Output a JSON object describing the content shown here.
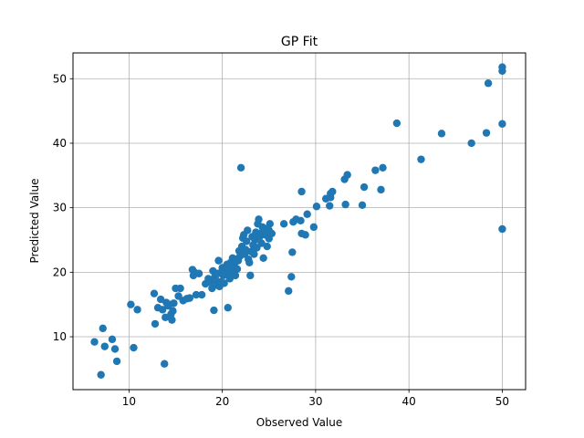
{
  "chart_data": {
    "type": "scatter",
    "title": "GP Fit",
    "xlabel": "Observed Value",
    "ylabel": "Predicted Value",
    "xlim": [
      4,
      52.5
    ],
    "ylim": [
      1.8,
      54
    ],
    "xticks": [
      10,
      20,
      30,
      40,
      50
    ],
    "yticks": [
      10,
      20,
      30,
      40,
      50
    ],
    "grid": true,
    "legend": "none",
    "color": "#1f77b4",
    "points": [
      [
        6.3,
        9.2
      ],
      [
        7.0,
        4.1
      ],
      [
        7.2,
        11.3
      ],
      [
        7.4,
        8.5
      ],
      [
        8.2,
        9.6
      ],
      [
        8.5,
        8.1
      ],
      [
        8.7,
        6.2
      ],
      [
        10.2,
        15.0
      ],
      [
        10.5,
        8.3
      ],
      [
        10.9,
        14.2
      ],
      [
        12.7,
        16.7
      ],
      [
        12.8,
        12.0
      ],
      [
        13.1,
        14.5
      ],
      [
        13.4,
        15.8
      ],
      [
        13.6,
        14.2
      ],
      [
        13.8,
        5.8
      ],
      [
        13.9,
        13.0
      ],
      [
        14.0,
        15.3
      ],
      [
        14.2,
        14.8
      ],
      [
        14.3,
        15.0
      ],
      [
        14.5,
        13.5
      ],
      [
        14.6,
        12.6
      ],
      [
        14.7,
        14.0
      ],
      [
        14.8,
        15.2
      ],
      [
        15.0,
        17.5
      ],
      [
        15.3,
        16.3
      ],
      [
        15.5,
        17.5
      ],
      [
        15.8,
        15.6
      ],
      [
        16.2,
        15.9
      ],
      [
        16.5,
        16.0
      ],
      [
        16.8,
        20.4
      ],
      [
        16.9,
        19.5
      ],
      [
        17.0,
        20.0
      ],
      [
        17.2,
        16.5
      ],
      [
        17.5,
        19.8
      ],
      [
        17.8,
        16.5
      ],
      [
        18.2,
        18.2
      ],
      [
        18.5,
        19.0
      ],
      [
        18.7,
        18.5
      ],
      [
        18.9,
        17.5
      ],
      [
        19.0,
        20.2
      ],
      [
        19.1,
        14.1
      ],
      [
        19.2,
        19.3
      ],
      [
        19.3,
        18.8
      ],
      [
        19.4,
        18.0
      ],
      [
        19.5,
        19.8
      ],
      [
        19.6,
        21.8
      ],
      [
        19.7,
        17.8
      ],
      [
        19.8,
        18.5
      ],
      [
        19.9,
        20.0
      ],
      [
        20.0,
        20.7
      ],
      [
        20.1,
        19.5
      ],
      [
        20.2,
        18.3
      ],
      [
        20.3,
        20.3
      ],
      [
        20.4,
        19.8
      ],
      [
        20.5,
        21.2
      ],
      [
        20.6,
        14.5
      ],
      [
        20.7,
        20.5
      ],
      [
        20.8,
        19.0
      ],
      [
        20.9,
        21.5
      ],
      [
        21.0,
        20.0
      ],
      [
        21.1,
        22.2
      ],
      [
        21.2,
        20.8
      ],
      [
        21.3,
        21.3
      ],
      [
        21.4,
        19.5
      ],
      [
        21.5,
        22.0
      ],
      [
        21.6,
        20.5
      ],
      [
        21.7,
        21.8
      ],
      [
        21.8,
        23.3
      ],
      [
        21.9,
        22.5
      ],
      [
        22.0,
        36.2
      ],
      [
        22.1,
        24.0
      ],
      [
        22.2,
        25.3
      ],
      [
        22.3,
        25.8
      ],
      [
        22.4,
        22.8
      ],
      [
        22.5,
        23.5
      ],
      [
        22.6,
        24.8
      ],
      [
        22.7,
        26.5
      ],
      [
        22.8,
        22.0
      ],
      [
        22.9,
        21.5
      ],
      [
        23.0,
        19.5
      ],
      [
        23.1,
        23.2
      ],
      [
        23.2,
        25.5
      ],
      [
        23.3,
        24.2
      ],
      [
        23.4,
        22.8
      ],
      [
        23.5,
        25.0
      ],
      [
        23.6,
        26.2
      ],
      [
        23.7,
        23.8
      ],
      [
        23.8,
        27.5
      ],
      [
        23.9,
        28.2
      ],
      [
        24.0,
        25.5
      ],
      [
        24.1,
        26.0
      ],
      [
        24.2,
        24.5
      ],
      [
        24.3,
        27.0
      ],
      [
        24.4,
        22.2
      ],
      [
        24.5,
        26.8
      ],
      [
        24.6,
        25.8
      ],
      [
        24.8,
        24.0
      ],
      [
        25.0,
        26.5
      ],
      [
        25.0,
        25.2
      ],
      [
        25.1,
        27.5
      ],
      [
        25.3,
        26.0
      ],
      [
        26.6,
        27.5
      ],
      [
        27.1,
        17.1
      ],
      [
        27.4,
        19.3
      ],
      [
        27.5,
        23.1
      ],
      [
        27.6,
        27.8
      ],
      [
        27.9,
        28.2
      ],
      [
        28.4,
        28.0
      ],
      [
        28.5,
        32.5
      ],
      [
        28.5,
        26.0
      ],
      [
        28.9,
        25.8
      ],
      [
        29.1,
        29.0
      ],
      [
        29.8,
        27.0
      ],
      [
        30.1,
        30.2
      ],
      [
        31.1,
        31.4
      ],
      [
        31.5,
        30.3
      ],
      [
        31.6,
        32.2
      ],
      [
        31.6,
        31.6
      ],
      [
        31.8,
        32.5
      ],
      [
        33.1,
        34.4
      ],
      [
        33.2,
        30.5
      ],
      [
        33.4,
        35.1
      ],
      [
        35.0,
        30.4
      ],
      [
        35.2,
        33.2
      ],
      [
        36.4,
        35.8
      ],
      [
        37.0,
        32.8
      ],
      [
        37.2,
        36.2
      ],
      [
        38.7,
        43.1
      ],
      [
        41.3,
        37.5
      ],
      [
        43.5,
        41.5
      ],
      [
        46.7,
        40.0
      ],
      [
        48.3,
        41.6
      ],
      [
        48.5,
        49.3
      ],
      [
        50.0,
        51.8
      ],
      [
        50.0,
        51.2
      ],
      [
        50.0,
        43.0
      ],
      [
        50.0,
        26.7
      ]
    ]
  }
}
